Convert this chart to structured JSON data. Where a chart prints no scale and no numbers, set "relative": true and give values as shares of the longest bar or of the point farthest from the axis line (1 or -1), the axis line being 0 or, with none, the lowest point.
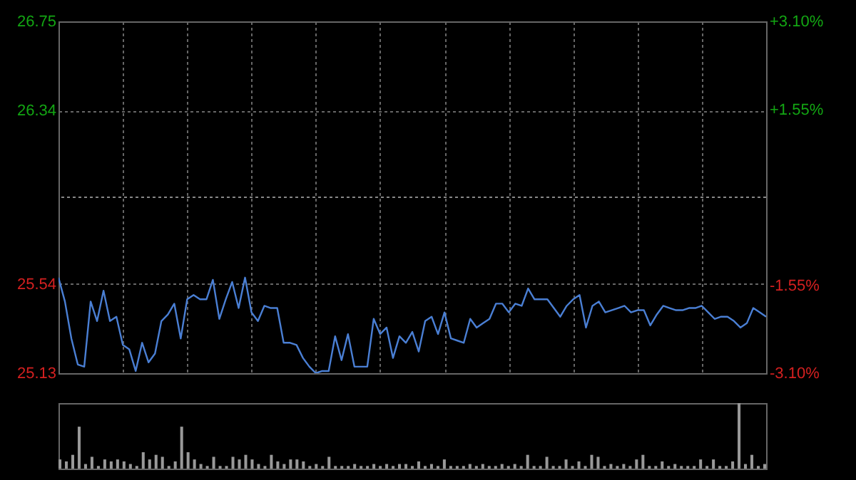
{
  "chart_data": [
    {
      "type": "line",
      "categories": [
        null,
        null,
        null,
        null,
        null,
        null,
        null,
        null,
        null,
        null,
        null,
        null,
        null,
        null,
        null,
        null,
        null,
        null,
        null,
        null,
        null,
        null,
        null,
        null,
        null,
        null,
        null,
        null,
        null,
        null,
        null,
        null,
        null,
        null,
        null,
        null,
        null,
        null,
        null,
        null,
        null,
        null,
        null,
        null,
        null,
        null,
        null,
        null,
        null,
        null,
        null,
        null,
        null,
        null,
        null,
        null,
        null,
        null,
        null,
        null,
        null,
        null,
        null,
        null,
        null,
        null,
        null,
        null,
        null,
        null,
        null,
        null,
        null,
        null,
        null,
        null,
        null,
        null,
        null,
        null,
        null,
        null,
        null,
        null,
        null,
        null,
        null,
        null,
        null,
        null,
        null,
        null,
        null,
        null,
        null,
        null,
        null,
        null,
        null,
        null,
        null,
        null,
        null,
        null,
        null,
        null,
        null,
        null,
        null,
        null,
        null
      ],
      "series": [
        {
          "color": "#4a7fd4",
          "values": [
            25.57,
            25.46,
            25.29,
            25.17,
            25.16,
            25.46,
            25.37,
            25.51,
            25.37,
            25.39,
            25.26,
            25.24,
            25.14,
            25.27,
            25.18,
            25.22,
            25.37,
            25.4,
            25.45,
            25.29,
            25.47,
            25.49,
            25.47,
            25.47,
            25.56,
            25.38,
            25.47,
            25.55,
            25.43,
            25.57,
            25.41,
            25.37,
            25.44,
            25.43,
            25.43,
            25.27,
            25.27,
            25.26,
            25.2,
            25.16,
            25.13,
            25.14,
            25.14,
            25.3,
            25.19,
            25.31,
            25.16,
            25.16,
            25.16,
            25.38,
            25.31,
            25.34,
            25.2,
            25.3,
            25.27,
            25.32,
            25.23,
            25.37,
            25.39,
            25.31,
            25.41,
            25.29,
            25.28,
            25.27,
            25.38,
            25.34,
            25.36,
            25.38,
            25.45,
            25.45,
            25.41,
            25.45,
            25.44,
            25.52,
            25.47,
            25.47,
            25.47,
            25.43,
            25.39,
            25.44,
            25.47,
            25.49,
            25.34,
            25.44,
            25.46,
            25.41,
            25.42,
            25.43,
            25.44,
            25.41,
            25.42,
            25.42,
            25.35,
            25.4,
            25.44,
            25.43,
            25.42,
            25.42,
            25.43,
            25.43,
            25.44,
            25.41,
            25.38,
            25.39,
            25.39,
            25.37,
            25.34,
            25.36,
            25.43,
            25.41,
            25.39
          ]
        }
      ],
      "ylim": [
        25.13,
        26.75
      ],
      "yticks": [
        25.13,
        25.54,
        26.34,
        26.75
      ],
      "y2lim": [
        -3.1,
        3.1
      ],
      "y2ticks": [
        {
          "value": -3.1,
          "label": "-3.10%"
        },
        {
          "value": -1.55,
          "label": "-1.55%"
        },
        {
          "value": 1.55,
          "label": "+1.55%"
        },
        {
          "value": 3.1,
          "label": "+3.10%"
        }
      ],
      "ref_lines": [
        {
          "axis": "y",
          "value": 25.94
        }
      ],
      "grid": true
    },
    {
      "type": "bar",
      "relative": true,
      "color": "#999999",
      "categories": [
        null,
        null,
        null,
        null,
        null,
        null,
        null,
        null,
        null,
        null,
        null,
        null,
        null,
        null,
        null,
        null,
        null,
        null,
        null,
        null,
        null,
        null,
        null,
        null,
        null,
        null,
        null,
        null,
        null,
        null,
        null,
        null,
        null,
        null,
        null,
        null,
        null,
        null,
        null,
        null,
        null,
        null,
        null,
        null,
        null,
        null,
        null,
        null,
        null,
        null,
        null,
        null,
        null,
        null,
        null,
        null,
        null,
        null,
        null,
        null,
        null,
        null,
        null,
        null,
        null,
        null,
        null,
        null,
        null,
        null,
        null,
        null,
        null,
        null,
        null,
        null,
        null,
        null,
        null,
        null,
        null,
        null,
        null,
        null,
        null,
        null,
        null,
        null,
        null,
        null,
        null,
        null,
        null,
        null,
        null,
        null,
        null,
        null,
        null,
        null,
        null,
        null,
        null,
        null,
        null,
        null,
        null,
        null,
        null,
        null,
        null
      ],
      "values": [
        0.14,
        0.11,
        0.21,
        0.64,
        0.07,
        0.18,
        0.04,
        0.14,
        0.11,
        0.14,
        0.11,
        0.07,
        0.04,
        0.25,
        0.14,
        0.21,
        0.18,
        0.04,
        0.11,
        0.64,
        0.25,
        0.14,
        0.07,
        0.04,
        0.18,
        0.04,
        0.04,
        0.18,
        0.14,
        0.21,
        0.14,
        0.07,
        0.04,
        0.21,
        0.11,
        0.07,
        0.14,
        0.14,
        0.11,
        0.04,
        0.07,
        0.04,
        0.18,
        0.04,
        0.04,
        0.04,
        0.07,
        0.04,
        0.04,
        0.07,
        0.04,
        0.07,
        0.04,
        0.07,
        0.07,
        0.04,
        0.11,
        0.04,
        0.07,
        0.04,
        0.14,
        0.04,
        0.04,
        0.04,
        0.07,
        0.04,
        0.07,
        0.04,
        0.04,
        0.07,
        0.04,
        0.07,
        0.04,
        0.21,
        0.04,
        0.04,
        0.18,
        0.04,
        0.04,
        0.14,
        0.04,
        0.11,
        0.04,
        0.21,
        0.18,
        0.04,
        0.07,
        0.04,
        0.07,
        0.04,
        0.14,
        0.21,
        0.04,
        0.04,
        0.11,
        0.04,
        0.07,
        0.04,
        0.04,
        0.04,
        0.14,
        0.04,
        0.14,
        0.04,
        0.04,
        0.11,
        1,
        0.07,
        0.21,
        0.04,
        0.07
      ]
    }
  ]
}
